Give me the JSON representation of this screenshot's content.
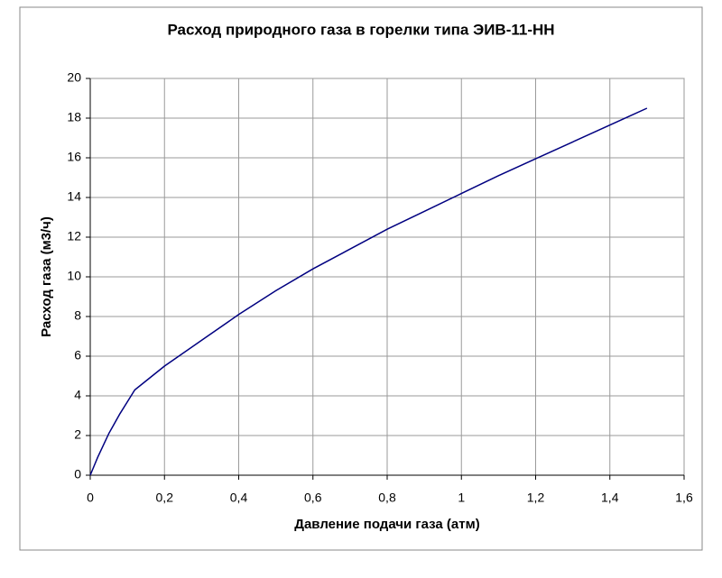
{
  "chart_data": {
    "type": "line",
    "title": "Расход природного газа в горелки типа ЭИВ-11-НН",
    "x_label": "Давление подачи газа (атм)",
    "y_label": "Расход газа (м3/ч)",
    "x": [
      0,
      0.02,
      0.05,
      0.08,
      0.1,
      0.12,
      0.15,
      0.2,
      0.3,
      0.4,
      0.5,
      0.6,
      0.7,
      0.8,
      0.9,
      1.0,
      1.1,
      1.2,
      1.3,
      1.4,
      1.5
    ],
    "series": [
      {
        "color": "#000080",
        "values": [
          0,
          0.9,
          2.1,
          3.1,
          3.7,
          4.3,
          4.75,
          5.5,
          6.8,
          8.1,
          9.3,
          10.4,
          11.4,
          12.4,
          13.3,
          14.2,
          15.1,
          15.95,
          16.8,
          17.65,
          18.5
        ]
      }
    ],
    "xlim": [
      0,
      1.6
    ],
    "xticks": [
      0,
      {
        "value": 0.2,
        "label": "0,2"
      },
      {
        "value": 0.4,
        "label": "0,4"
      },
      {
        "value": 0.6,
        "label": "0,6"
      },
      {
        "value": 0.8,
        "label": "0,8"
      },
      1,
      {
        "value": 1.2,
        "label": "1,2"
      },
      {
        "value": 1.4,
        "label": "1,4"
      },
      {
        "value": 1.6,
        "label": "1,6"
      }
    ],
    "ylim": [
      0,
      20
    ],
    "yticks": [
      0,
      2,
      4,
      6,
      8,
      10,
      12,
      14,
      16,
      18,
      20
    ],
    "grid": true
  }
}
